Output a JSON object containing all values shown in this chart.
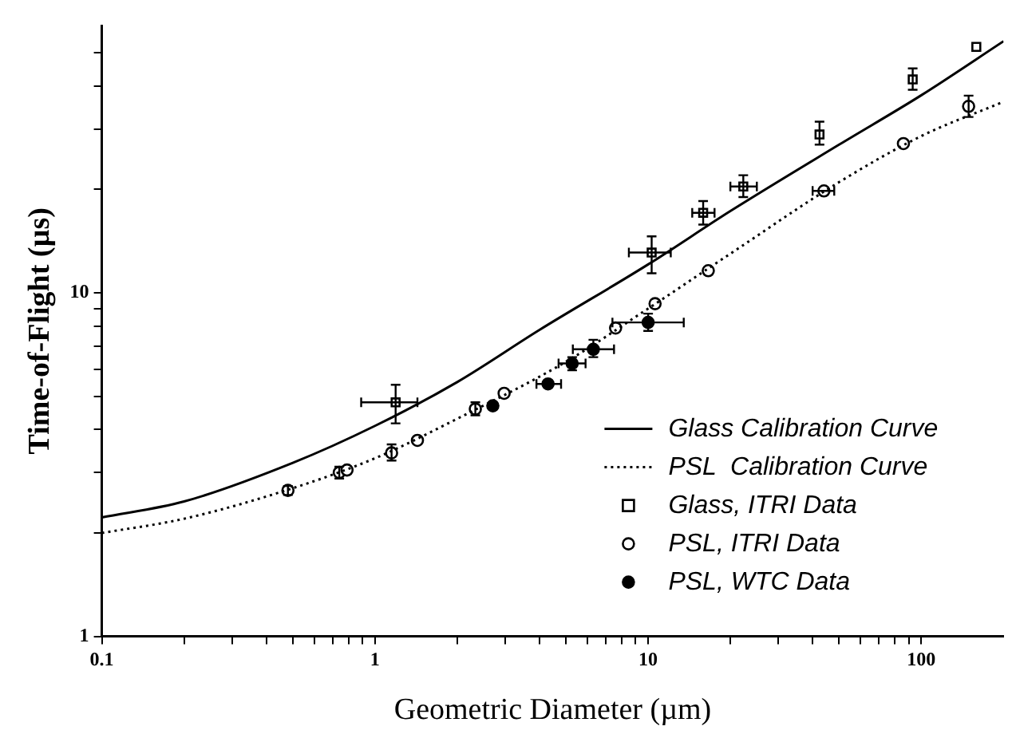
{
  "chart_data": {
    "type": "scatter",
    "xlabel": "Geometric Diameter (µm)",
    "ylabel": "Time-of-Flight (µs)",
    "log": "xy",
    "grid": false,
    "legend": "bottom right",
    "xlim": [
      0.1,
      200
    ],
    "ylim": [
      1,
      60
    ],
    "xticks": [
      0.1,
      {
        "value": 0.2,
        "label": null
      },
      {
        "value": 0.3,
        "label": null
      },
      {
        "value": 0.4,
        "label": null
      },
      {
        "value": 0.5,
        "label": null
      },
      {
        "value": 0.6,
        "label": null
      },
      {
        "value": 0.7,
        "label": null
      },
      {
        "value": 0.8,
        "label": null
      },
      {
        "value": 0.9,
        "label": null
      },
      1,
      {
        "value": 2,
        "label": null
      },
      {
        "value": 3,
        "label": null
      },
      {
        "value": 4,
        "label": null
      },
      {
        "value": 5,
        "label": null
      },
      {
        "value": 6,
        "label": null
      },
      {
        "value": 7,
        "label": null
      },
      {
        "value": 8,
        "label": null
      },
      {
        "value": 9,
        "label": null
      },
      10,
      {
        "value": 20,
        "label": null
      },
      {
        "value": 30,
        "label": null
      },
      {
        "value": 40,
        "label": null
      },
      {
        "value": 50,
        "label": null
      },
      {
        "value": 60,
        "label": null
      },
      {
        "value": 70,
        "label": null
      },
      {
        "value": 80,
        "label": null
      },
      {
        "value": 90,
        "label": null
      },
      100
    ],
    "yticks": [
      1,
      {
        "value": 2,
        "label": null
      },
      {
        "value": 3,
        "label": null
      },
      {
        "value": 4,
        "label": null
      },
      {
        "value": 5,
        "label": null
      },
      {
        "value": 6,
        "label": null
      },
      {
        "value": 7,
        "label": null
      },
      {
        "value": 8,
        "label": null
      },
      {
        "value": 9,
        "label": null
      },
      10,
      {
        "value": 20,
        "label": null
      },
      {
        "value": 30,
        "label": null
      },
      {
        "value": 40,
        "label": null
      },
      {
        "value": 50,
        "label": null
      }
    ],
    "series": [
      {
        "name": "Glass Calibration Curve",
        "type": "line",
        "color": "#000000",
        "line_style": "solid",
        "marker": "none",
        "x": [
          0.1,
          0.2,
          0.5,
          1,
          2,
          4,
          10,
          20,
          50,
          100,
          200
        ],
        "values": [
          2.22,
          2.47,
          3.2,
          4.1,
          5.5,
          7.8,
          12.1,
          17.3,
          27,
          37.6,
          54
        ]
      },
      {
        "name": "PSL  Calibration Curve",
        "type": "line",
        "color": "#000000",
        "line_style": "dotted",
        "marker": "none",
        "x": [
          0.1,
          0.2,
          0.5,
          1,
          2,
          5,
          10,
          20,
          50,
          100,
          200
        ],
        "values": [
          2.0,
          2.2,
          2.7,
          3.3,
          4.3,
          6.3,
          9.0,
          13,
          21,
          28.6,
          36
        ]
      },
      {
        "name": "Glass, ITRI Data",
        "color": "#000000",
        "marker": "square",
        "x": [
          1.19,
          10.3,
          15.9,
          22.3,
          42.4,
          93,
          159
        ],
        "values": [
          4.8,
          13.1,
          17.1,
          20.4,
          28.9,
          41.8,
          52
        ],
        "errors": [
          [
            4.17,
            5.4
          ],
          [
            11.4,
            14.6
          ],
          [
            15.8,
            18.5
          ],
          [
            19,
            22
          ],
          [
            27,
            31.5
          ],
          [
            39,
            45
          ],
          null
        ],
        "xerrors": [
          [
            0.89,
            1.43
          ],
          [
            8.5,
            12.1
          ],
          [
            14.5,
            17.5
          ],
          [
            20,
            25
          ],
          null,
          null,
          null
        ]
      },
      {
        "name": "PSL, ITRI Data",
        "color": "#000000",
        "marker": "circle",
        "x": [
          0.48,
          0.74,
          0.79,
          1.15,
          1.43,
          2.33,
          2.97,
          7.6,
          10.6,
          16.6,
          44,
          86,
          149
        ],
        "values": [
          2.66,
          3.0,
          3.05,
          3.42,
          3.72,
          4.59,
          5.1,
          7.9,
          9.3,
          11.6,
          19.8,
          27.2,
          34.9
        ],
        "errors": [
          [
            2.58,
            2.74
          ],
          [
            2.88,
            3.12
          ],
          null,
          [
            3.25,
            3.62
          ],
          null,
          [
            4.4,
            4.8
          ],
          null,
          null,
          null,
          null,
          null,
          null,
          [
            32.5,
            37.5
          ]
        ],
        "xerrors": [
          null,
          null,
          null,
          null,
          null,
          null,
          null,
          null,
          null,
          null,
          [
            40,
            48
          ],
          null,
          null
        ]
      },
      {
        "name": "PSL, WTC Data",
        "color": "#000000",
        "marker": "filled-circle",
        "x": [
          2.7,
          4.3,
          5.27,
          6.3,
          10
        ],
        "values": [
          4.69,
          5.43,
          6.23,
          6.85,
          8.2
        ],
        "errors": [
          null,
          null,
          [
            5.95,
            6.5
          ],
          [
            6.5,
            7.3
          ],
          [
            7.75,
            8.7
          ]
        ],
        "xerrors": [
          null,
          [
            3.9,
            4.8
          ],
          [
            4.7,
            5.9
          ],
          [
            5.3,
            7.5
          ],
          [
            7.4,
            13.5
          ]
        ]
      }
    ]
  }
}
